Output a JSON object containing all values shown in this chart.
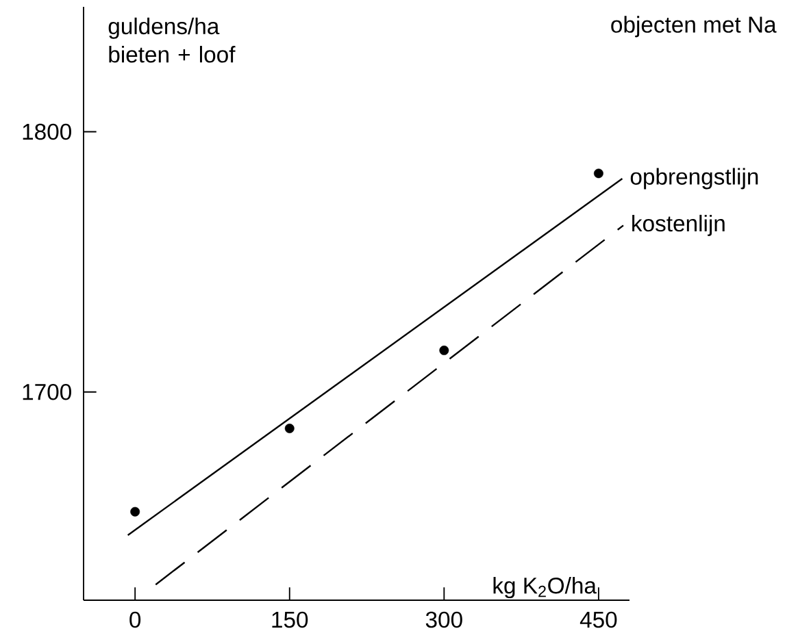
{
  "chart_data": {
    "type": "line",
    "title": "objecten met Na",
    "xlabel": "kg K$_{2}$O/ha",
    "ylabel": "guldens/ha bieten + loof",
    "xlim": [
      -50,
      480
    ],
    "ylim": [
      1620,
      1848
    ],
    "xticks": [
      0,
      150,
      300,
      450
    ],
    "yticks": [
      1700,
      1800
    ],
    "grid": false,
    "legend": false,
    "series": [
      {
        "type": "scatter",
        "color": "#000000",
        "marker": "circle",
        "x": [
          0,
          150,
          300,
          450
        ],
        "values": [
          1654,
          1686,
          1716,
          1784
        ]
      },
      {
        "name": "opbrengstlijn",
        "color": "#000000",
        "line_style": "solid",
        "x": [
          -7,
          473
        ],
        "values": [
          1645,
          1782
        ]
      },
      {
        "name": "kostenlijn",
        "color": "#000000",
        "line_style": "dashed",
        "x": [
          20,
          474
        ],
        "values": [
          1626,
          1764
        ]
      }
    ]
  }
}
